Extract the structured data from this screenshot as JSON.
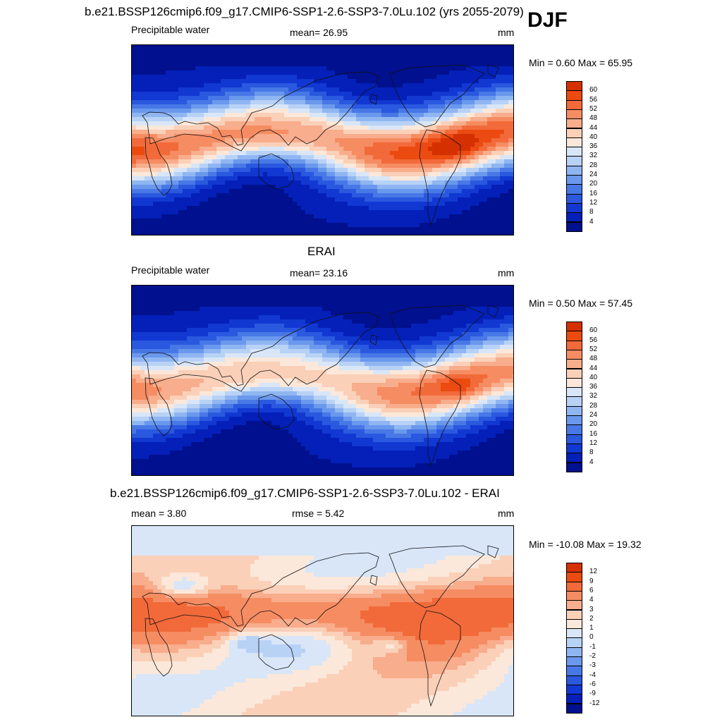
{
  "season": "DJF",
  "main_title": "b.e21.BSSP126cmip6.f09_g17.CMIP6-SSP1-2.6-SSP3-7.0Lu.102 (yrs 2055-2079)",
  "panels": [
    {
      "variable": "Precipitable water",
      "stat_text": "mean=  26.95",
      "units": "mm",
      "minmax": "Min =   0.60 Max =  65.95",
      "field_type": "model",
      "colorbar_ticks": [
        "60",
        "56",
        "52",
        "48",
        "44",
        "40",
        "36",
        "32",
        "28",
        "24",
        "20",
        "16",
        "12",
        "8",
        "4"
      ],
      "colors": [
        "#8b0000",
        "#b01a00",
        "#d43000",
        "#eb4a10",
        "#f26a3a",
        "#f68c62",
        "#f8ad8c",
        "#fbd0b8",
        "#fbe8da",
        "#d8e6f8",
        "#b8d2f6",
        "#90b6f2",
        "#6a98ec",
        "#4878e6",
        "#2a58de",
        "#1238d2",
        "#0420b8",
        "#00108e"
      ]
    },
    {
      "title": "ERAI",
      "variable": "Precipitable water",
      "stat_text": "mean=  23.16",
      "units": "mm",
      "minmax": "Min =   0.50 Max =  57.45",
      "field_type": "obs",
      "colorbar_ticks": [
        "60",
        "56",
        "52",
        "48",
        "44",
        "40",
        "36",
        "32",
        "28",
        "24",
        "20",
        "16",
        "12",
        "8",
        "4"
      ],
      "colors": [
        "#8b0000",
        "#b01a00",
        "#d43000",
        "#eb4a10",
        "#f26a3a",
        "#f68c62",
        "#f8ad8c",
        "#fbd0b8",
        "#fbe8da",
        "#d8e6f8",
        "#b8d2f6",
        "#90b6f2",
        "#6a98ec",
        "#4878e6",
        "#2a58de",
        "#1238d2",
        "#0420b8",
        "#00108e"
      ]
    },
    {
      "title": "b.e21.BSSP126cmip6.f09_g17.CMIP6-SSP1-2.6-SSP3-7.0Lu.102 - ERAI",
      "variable": "mean =   3.80",
      "stat_text": "rmse =   5.42",
      "units": "mm",
      "minmax": "Min = -10.08 Max =  19.32",
      "field_type": "diff",
      "colorbar_ticks": [
        "12",
        "9",
        "6",
        "4",
        "3",
        "2",
        "1",
        "0",
        "-1",
        "-2",
        "-3",
        "-4",
        "-6",
        "-9",
        "-12"
      ],
      "colors": [
        "#8b0000",
        "#b01a00",
        "#d43000",
        "#eb4a10",
        "#f26a3a",
        "#f68c62",
        "#f8ad8c",
        "#fbd0b8",
        "#fbe8da",
        "#d8e6f8",
        "#b8d2f6",
        "#90b6f2",
        "#6a98ec",
        "#4878e6",
        "#2a58de",
        "#1238d2",
        "#0420b8",
        "#00108e"
      ]
    }
  ]
}
